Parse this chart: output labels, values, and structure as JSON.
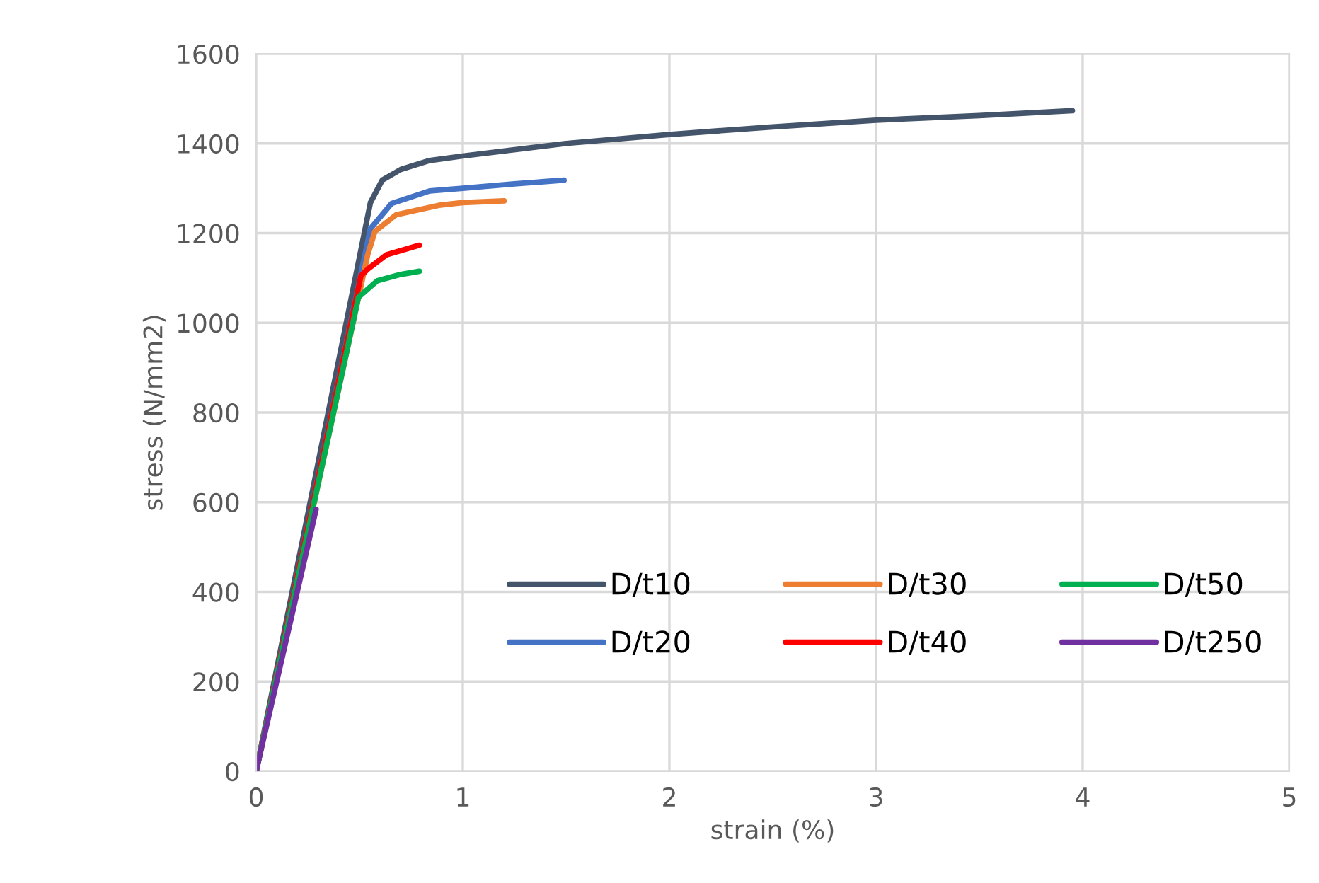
{
  "chart_data": {
    "type": "line",
    "xlabel": "strain (%)",
    "ylabel": "stress (N/mm2)",
    "xlim": [
      0,
      5
    ],
    "xticks": [
      0,
      1,
      2,
      3,
      4,
      5
    ],
    "ylim": [
      0,
      1600
    ],
    "yticks": [
      0,
      200,
      400,
      600,
      800,
      1000,
      1200,
      1400,
      1600
    ],
    "grid": true,
    "legend": "lower right",
    "marker": "none",
    "line_style": "solid",
    "series": [
      {
        "name": "D/t10",
        "color": "#44546a",
        "x": [
          0,
          0.553,
          0.61,
          0.7,
          0.84,
          1.0,
          1.5,
          2.0,
          2.5,
          3.0,
          3.5,
          3.95
        ],
        "values": [
          0,
          1268,
          1318,
          1342,
          1362,
          1372,
          1400,
          1420,
          1437,
          1452,
          1462,
          1473
        ]
      },
      {
        "name": "D/t20",
        "color": "#4472c4",
        "x": [
          0,
          0.553,
          0.655,
          0.84,
          1.0,
          1.25,
          1.49
        ],
        "values": [
          0,
          1210,
          1266,
          1294,
          1300,
          1310,
          1318
        ]
      },
      {
        "name": "D/t30",
        "color": "#ed7d31",
        "x": [
          0,
          0.54,
          0.575,
          0.678,
          0.884,
          1.0,
          1.2
        ],
        "values": [
          0,
          1152,
          1204,
          1241,
          1262,
          1268,
          1272
        ]
      },
      {
        "name": "D/t40",
        "color": "#ff0000",
        "x": [
          0,
          0.507,
          0.541,
          0.632,
          0.79
        ],
        "values": [
          0,
          1105,
          1120,
          1152,
          1173
        ]
      },
      {
        "name": "D/t50",
        "color": "#00b050",
        "x": [
          0,
          0.495,
          0.587,
          0.7,
          0.79
        ],
        "values": [
          0,
          1057,
          1094,
          1108,
          1115
        ]
      },
      {
        "name": "D/t250",
        "color": "#7030a0",
        "x": [
          0,
          0.29
        ],
        "values": [
          0,
          584
        ]
      }
    ]
  }
}
